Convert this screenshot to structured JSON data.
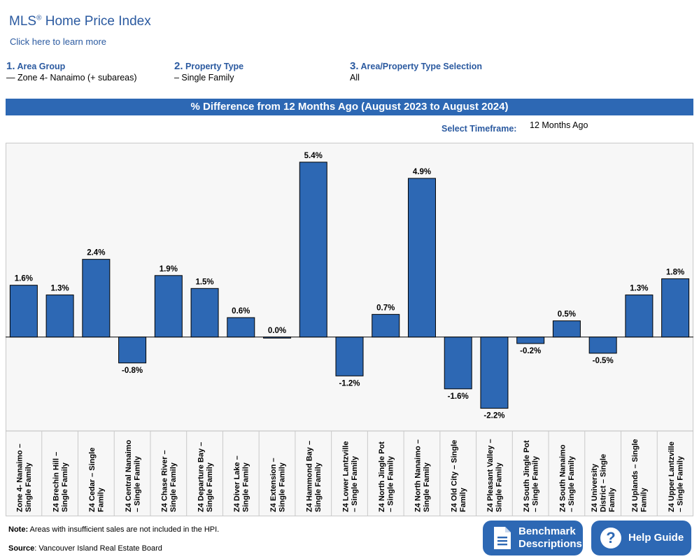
{
  "header": {
    "title": "MLS",
    "title_mark": "®",
    "title_rest": " Home Price Index",
    "learn_link": "Click here to learn more"
  },
  "selections": [
    {
      "num": "1.",
      "label": "Area Group",
      "value": "— Zone 4- Nanaimo (+ subareas)"
    },
    {
      "num": "2.",
      "label": "Property Type",
      "value": "– Single Family"
    },
    {
      "num": "3.",
      "label": "Area/Property Type Selection",
      "value": "All"
    }
  ],
  "banner": "% Difference from 12 Months Ago (August 2023 to August 2024)",
  "timeframe": {
    "label": "Select Timeframe:",
    "value": "12 Months Ago"
  },
  "chart_data": {
    "type": "bar",
    "title": "% Difference from 12 Months Ago (August 2023 to August 2024)",
    "categories": [
      [
        "Zone 4- Nanaimo –",
        "Single Family"
      ],
      [
        "Z4 Brechin Hill –",
        "Single Family"
      ],
      [
        "Z4 Cedar – Single",
        "Family"
      ],
      [
        "Z4 Central Nanaimo",
        "– Single Family"
      ],
      [
        "Z4 Chase River –",
        "Single Family"
      ],
      [
        "Z4 Departure Bay –",
        "Single Family"
      ],
      [
        "Z4 Diver Lake –",
        "Single Family"
      ],
      [
        "Z4 Extension –",
        "Single Family"
      ],
      [
        "Z4 Hammond Bay –",
        "Single Family"
      ],
      [
        "Z4 Lower Lantzville",
        "– Single Family"
      ],
      [
        "Z4 North Jingle Pot",
        "– Single Family"
      ],
      [
        "Z4 North Nanaimo –",
        "Single Family"
      ],
      [
        "Z4 Old City – Single",
        "Family"
      ],
      [
        "Z4 Pleasant Valley –",
        "Single Family"
      ],
      [
        "Z4 South Jingle Pot",
        "– Single Family"
      ],
      [
        "Z4 South Nanaimo",
        "– Single Family"
      ],
      [
        "Z4 University",
        "District – Single",
        "Family"
      ],
      [
        "Z4 Uplands – Single",
        "Family"
      ],
      [
        "Z4 Upper Lantzville",
        "– Single Family"
      ]
    ],
    "values": [
      1.6,
      1.3,
      2.4,
      -0.8,
      1.9,
      1.5,
      0.6,
      0.0,
      5.4,
      -1.2,
      0.7,
      4.9,
      -1.6,
      -2.2,
      -0.2,
      0.5,
      -0.5,
      1.3,
      1.8
    ],
    "labels": [
      "1.6%",
      "1.3%",
      "2.4%",
      "-0.8%",
      "1.9%",
      "1.5%",
      "0.6%",
      "0.0%",
      "5.4%",
      "-1.2%",
      "0.7%",
      "4.9%",
      "-1.6%",
      "-2.2%",
      "-0.2%",
      "0.5%",
      "-0.5%",
      "1.3%",
      "1.8%"
    ],
    "ylim": [
      -2.9,
      6.0
    ],
    "bar_color": "#2d68b4",
    "grid": false
  },
  "footer": {
    "note_label": "Note:",
    "note_text": " Areas with insufficient sales are not included in the HPI.",
    "source_label": "Source",
    "source_text": ": Vancouver Island Real Estate Board"
  },
  "buttons": {
    "benchmark_line1": "Benchmark",
    "benchmark_line2": "Descriptions",
    "help": "Help Guide"
  },
  "icons": {
    "benchmark": "document-icon",
    "help": "question-circle-icon"
  },
  "colors": {
    "accent": "#2d68b4",
    "link": "#2b5aa0"
  }
}
